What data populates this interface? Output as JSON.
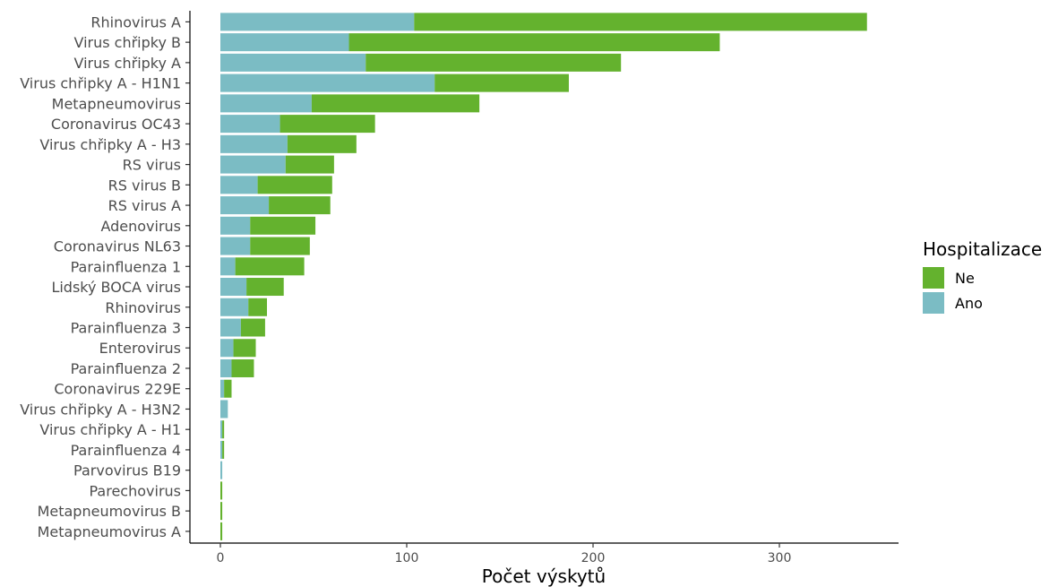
{
  "chart_data": {
    "type": "bar",
    "orientation": "horizontal",
    "stacked": true,
    "xlabel": "Počet výskytů",
    "ylabel": "",
    "xlim": [
      0,
      350
    ],
    "xticks": [
      0,
      100,
      200,
      300
    ],
    "grid": false,
    "legend": {
      "title": "Hospitalizace",
      "position": "right"
    },
    "categories": [
      "Rhinovirus A",
      "Virus chřipky B",
      "Virus chřipky A",
      "Virus chřipky A - H1N1",
      "Metapneumovirus",
      "Coronavirus OC43",
      "Virus chřipky A - H3",
      "RS virus",
      "RS virus B",
      "RS virus A",
      "Adenovirus",
      "Coronavirus NL63",
      "Parainfluenza 1",
      "Lidský BOCA virus",
      "Rhinovirus",
      "Parainfluenza 3",
      "Enterovirus",
      "Parainfluenza 2",
      "Coronavirus 229E",
      "Virus chřipky A - H3N2",
      "Virus chřipky A - H1",
      "Parainfluenza 4",
      "Parvovirus B19",
      "Parechovirus",
      "Metapneumovirus B",
      "Metapneumovirus A"
    ],
    "series": [
      {
        "name": "Ano",
        "color": "#7bbcc4",
        "values": [
          104,
          69,
          78,
          115,
          49,
          32,
          36,
          35,
          20,
          26,
          16,
          16,
          8,
          14,
          15,
          11,
          7,
          6,
          2,
          4,
          1,
          1,
          1,
          0,
          0,
          0
        ]
      },
      {
        "name": "Ne",
        "color": "#64b22e",
        "values": [
          243,
          199,
          137,
          72,
          90,
          51,
          37,
          26,
          40,
          33,
          35,
          32,
          37,
          20,
          10,
          13,
          12,
          12,
          4,
          0,
          1,
          1,
          0,
          1,
          1,
          1
        ]
      }
    ],
    "legend_order": [
      "Ne",
      "Ano"
    ]
  }
}
